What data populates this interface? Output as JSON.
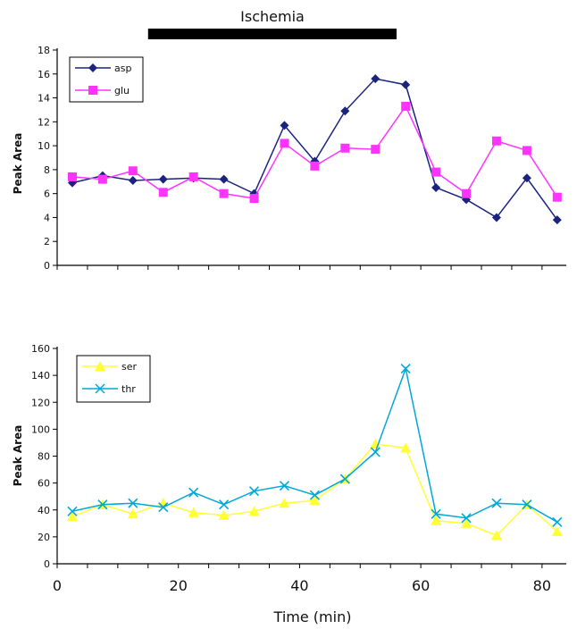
{
  "annotation": {
    "text": "Ischemia",
    "x_start": 15,
    "x_end": 56
  },
  "chart_data": [
    {
      "type": "line",
      "title": "",
      "xlabel": "",
      "ylabel": "Peak Area",
      "xlim": [
        0,
        84
      ],
      "ylim": [
        0,
        18
      ],
      "y_ticks": [
        "0",
        "2",
        "4",
        "6",
        "8",
        "10",
        "12",
        "14",
        "16",
        "18"
      ],
      "grid": false,
      "legend_position": "top-left",
      "x": [
        2.5,
        7.5,
        12.5,
        17.5,
        22.5,
        27.5,
        32.5,
        37.5,
        42.5,
        47.5,
        52.5,
        57.5,
        62.5,
        67.5,
        72.5,
        77.5,
        82.5
      ],
      "series": [
        {
          "name": "asp",
          "color": "#1a237e",
          "marker": "diamond",
          "values": [
            6.9,
            7.5,
            7.1,
            7.2,
            7.3,
            7.2,
            6.0,
            11.7,
            8.7,
            12.9,
            15.6,
            15.1,
            6.5,
            5.5,
            4.0,
            7.3,
            3.8
          ]
        },
        {
          "name": "glu",
          "color": "#ff33ff",
          "marker": "square",
          "values": [
            7.4,
            7.2,
            7.9,
            6.1,
            7.4,
            6.0,
            5.6,
            10.2,
            8.3,
            9.8,
            9.7,
            13.3,
            7.8,
            6.0,
            10.4,
            9.6,
            5.7
          ]
        }
      ]
    },
    {
      "type": "line",
      "title": "",
      "xlabel": "Time (min)",
      "ylabel": "Peak Area",
      "xlim": [
        0,
        84
      ],
      "ylim": [
        0,
        160
      ],
      "x_ticks": [
        "0",
        "20",
        "40",
        "60",
        "80"
      ],
      "y_ticks": [
        "0",
        "20",
        "40",
        "60",
        "80",
        "100",
        "120",
        "140",
        "160"
      ],
      "grid": false,
      "legend_position": "top-left",
      "x": [
        2.5,
        7.5,
        12.5,
        17.5,
        22.5,
        27.5,
        32.5,
        37.5,
        42.5,
        47.5,
        52.5,
        57.5,
        62.5,
        67.5,
        72.5,
        77.5,
        82.5
      ],
      "series": [
        {
          "name": "ser",
          "color": "#ffff33",
          "marker": "triangle",
          "values": [
            35,
            44,
            37,
            45,
            38,
            36,
            39,
            45,
            47,
            63,
            89,
            86,
            32,
            30,
            21,
            44,
            24
          ]
        },
        {
          "name": "thr",
          "color": "#00a8d8",
          "marker": "x",
          "values": [
            39,
            44,
            45,
            42,
            53,
            44,
            54,
            58,
            51,
            63,
            83,
            145,
            37,
            34,
            45,
            44,
            31
          ]
        }
      ]
    }
  ]
}
